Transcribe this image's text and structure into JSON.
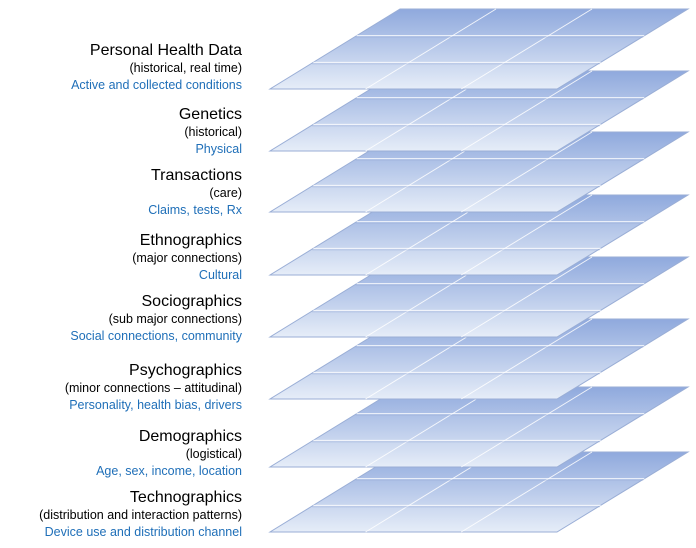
{
  "layers": [
    {
      "title": "Personal Health Data",
      "subtitle": "(historical, real time)",
      "detail": "Active and collected conditions"
    },
    {
      "title": "Genetics",
      "subtitle": "(historical)",
      "detail": "Physical"
    },
    {
      "title": "Transactions",
      "subtitle": "(care)",
      "detail": "Claims, tests, Rx"
    },
    {
      "title": "Ethnographics",
      "subtitle": "(major connections)",
      "detail": "Cultural"
    },
    {
      "title": "Sociographics",
      "subtitle": "(sub major connections)",
      "detail": "Social connections, community"
    },
    {
      "title": "Psychographics",
      "subtitle": "(minor connections – attitudinal)",
      "detail": "Personality, health bias, drivers"
    },
    {
      "title": "Demographics",
      "subtitle": "(logistical)",
      "detail": "Age, sex, income, location"
    },
    {
      "title": "Technographics",
      "subtitle": "(distribution and interaction patterns)",
      "detail": "Device use and distribution channel"
    }
  ],
  "colors": {
    "plane_dark": "#8fa9dd",
    "plane_light": "#e6edf8",
    "grid_line": "#ffffff",
    "outline": "#9aaed6",
    "detail_text": "#1f6fb8"
  }
}
